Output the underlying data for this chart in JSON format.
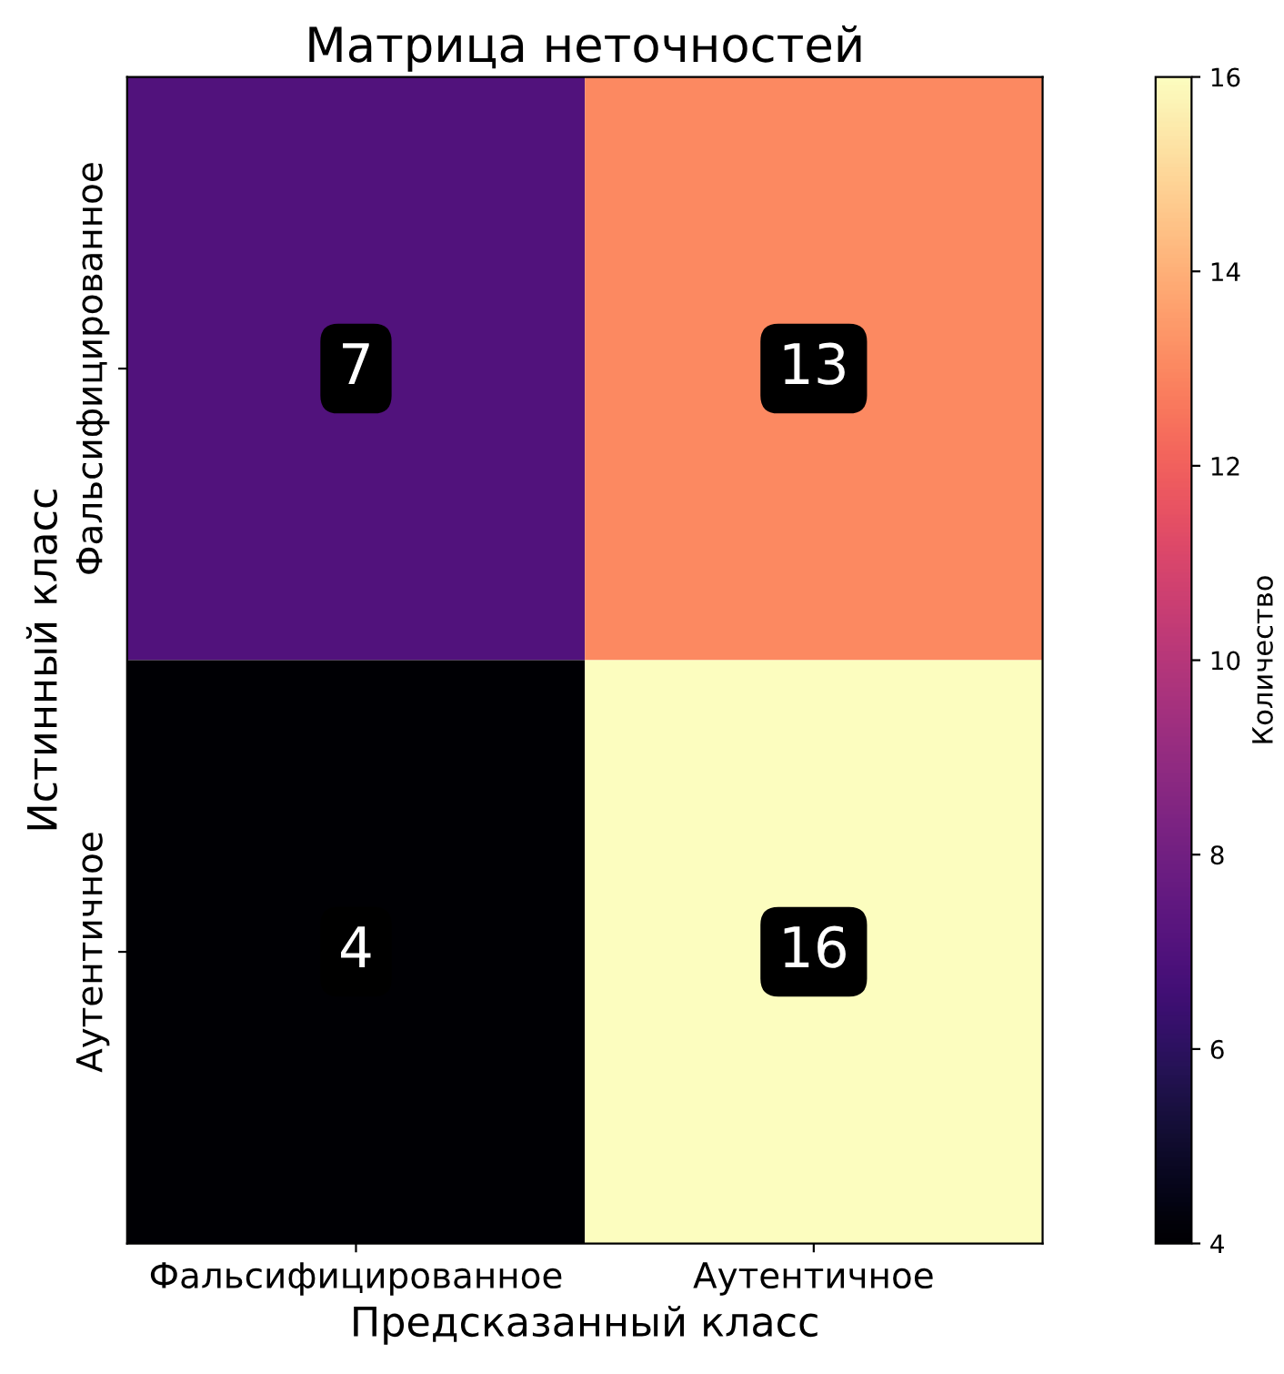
{
  "chart_data": {
    "type": "heatmap",
    "title": "Матрица неточностей",
    "xlabel": "Предсказанный класс",
    "ylabel": "Истинный класс",
    "clabel": "Количество",
    "categories": [
      "Фальсифицированное",
      "Аутентичное"
    ],
    "y_categories": [
      "Фальсифицированное",
      "Аутентичное"
    ],
    "cells": [
      [
        7,
        13
      ],
      [
        4,
        16
      ]
    ],
    "clim": [
      4,
      16
    ],
    "cticks": [
      4,
      6,
      8,
      10,
      12,
      14,
      16
    ],
    "data_labels": true,
    "grid": false
  }
}
